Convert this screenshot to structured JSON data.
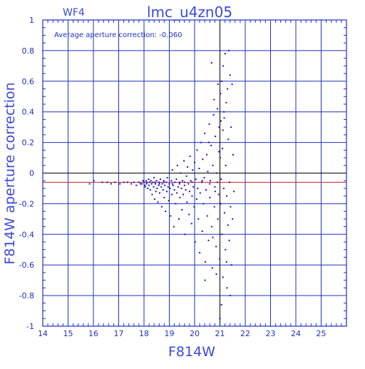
{
  "header": {
    "corner_label": "WF4",
    "title": "lmc_u4zn05"
  },
  "annotation": "Average aperture correction: -0.060",
  "chart_data": {
    "type": "scatter",
    "title": "lmc_u4zn05",
    "subtitle": "WF4",
    "xlabel": "F814W",
    "ylabel": "F814W aperture correction",
    "xlim": [
      14,
      26
    ],
    "ylim": [
      -1,
      1
    ],
    "xticks": [
      14,
      15,
      16,
      17,
      18,
      19,
      20,
      21,
      22,
      23,
      24,
      25
    ],
    "yticks": [
      -1,
      -0.8,
      -0.6,
      -0.4,
      -0.2,
      0,
      0.2,
      0.4,
      0.6,
      0.8,
      1
    ],
    "ytick_labels": [
      "-1",
      "-0.8",
      "-0.6",
      "-0.4",
      "-0.2",
      "0",
      "0.2",
      "0.4",
      "0.6",
      "0.8",
      "1"
    ],
    "grid": true,
    "reference_lines": {
      "horizontal_zero": 0,
      "average_correction": -0.06,
      "vertical_x": 21
    },
    "annotation": "Average aperture correction: -0.060",
    "colors": {
      "axes": "#1f2fbf",
      "grid": "#1f2fbf",
      "points": "#1414c8",
      "average_line": "#cc2020",
      "reference_line": "#000000",
      "text": "#3a4ad8"
    },
    "series": [
      {
        "points": [
          [
            15.85,
            -0.07
          ],
          [
            16.02,
            -0.05
          ],
          [
            16.35,
            -0.06
          ],
          [
            16.55,
            -0.06
          ],
          [
            16.7,
            -0.07
          ],
          [
            16.85,
            -0.06
          ],
          [
            17.05,
            -0.07
          ],
          [
            17.2,
            -0.06
          ],
          [
            17.35,
            -0.06
          ],
          [
            17.5,
            -0.07
          ],
          [
            17.6,
            -0.06
          ],
          [
            17.7,
            -0.08
          ],
          [
            17.8,
            -0.06
          ],
          [
            17.86,
            -0.07
          ],
          [
            17.92,
            -0.07
          ],
          [
            17.96,
            -0.05
          ],
          [
            18.0,
            -0.06
          ],
          [
            18.03,
            -0.08
          ],
          [
            18.05,
            -0.09
          ],
          [
            18.08,
            -0.05
          ],
          [
            18.1,
            -0.07
          ],
          [
            18.12,
            -0.06
          ],
          [
            18.15,
            -0.1
          ],
          [
            18.18,
            -0.04
          ],
          [
            18.2,
            -0.08
          ],
          [
            18.22,
            -0.06
          ],
          [
            18.25,
            -0.11
          ],
          [
            18.27,
            -0.05
          ],
          [
            18.3,
            -0.07
          ],
          [
            18.32,
            -0.14
          ],
          [
            18.35,
            -0.06
          ],
          [
            18.38,
            -0.09
          ],
          [
            18.4,
            -0.03
          ],
          [
            18.42,
            -0.17
          ],
          [
            18.45,
            -0.07
          ],
          [
            18.47,
            -0.12
          ],
          [
            18.5,
            -0.05
          ],
          [
            18.52,
            -0.1
          ],
          [
            18.55,
            -0.19
          ],
          [
            18.58,
            -0.08
          ],
          [
            18.6,
            -0.06
          ],
          [
            18.62,
            -0.13
          ],
          [
            18.65,
            -0.04
          ],
          [
            18.68,
            -0.09
          ],
          [
            18.7,
            -0.22
          ],
          [
            18.72,
            -0.07
          ],
          [
            18.75,
            -0.11
          ],
          [
            18.78,
            -0.05
          ],
          [
            18.8,
            -0.16
          ],
          [
            18.82,
            -0.08
          ],
          [
            18.85,
            -0.25
          ],
          [
            18.88,
            -0.06
          ],
          [
            18.9,
            -0.12
          ],
          [
            18.92,
            -0.03
          ],
          [
            18.95,
            -0.09
          ],
          [
            18.98,
            -0.18
          ],
          [
            19.0,
            -0.07
          ],
          [
            19.03,
            -0.1
          ],
          [
            19.05,
            -0.28
          ],
          [
            19.08,
            -0.05
          ],
          [
            19.1,
            -0.14
          ],
          [
            19.12,
            0.02
          ],
          [
            19.15,
            -0.08
          ],
          [
            19.18,
            -0.35
          ],
          [
            19.2,
            -0.11
          ],
          [
            19.22,
            -0.06
          ],
          [
            19.25,
            -0.2
          ],
          [
            19.28,
            -0.04
          ],
          [
            19.3,
            -0.13
          ],
          [
            19.32,
            0.05
          ],
          [
            19.35,
            -0.09
          ],
          [
            19.38,
            -0.3
          ],
          [
            19.4,
            -0.07
          ],
          [
            19.42,
            -0.16
          ],
          [
            19.45,
            0.0
          ],
          [
            19.48,
            -0.1
          ],
          [
            19.5,
            -0.24
          ],
          [
            19.52,
            -0.05
          ],
          [
            19.55,
            -0.14
          ],
          [
            19.58,
            0.08
          ],
          [
            19.6,
            -0.08
          ],
          [
            19.62,
            -0.4
          ],
          [
            19.65,
            -0.11
          ],
          [
            19.68,
            -0.02
          ],
          [
            19.7,
            -0.19
          ],
          [
            19.72,
            0.04
          ],
          [
            19.75,
            -0.07
          ],
          [
            19.78,
            -0.27
          ],
          [
            19.8,
            -0.12
          ],
          [
            19.82,
            0.11
          ],
          [
            19.85,
            -0.05
          ],
          [
            19.88,
            -0.33
          ],
          [
            19.9,
            -0.15
          ],
          [
            19.92,
            0.02
          ],
          [
            19.95,
            -0.09
          ],
          [
            19.98,
            -0.22
          ],
          [
            20.0,
            0.07
          ],
          [
            20.02,
            -0.45
          ],
          [
            20.05,
            -0.04
          ],
          [
            20.08,
            -0.17
          ],
          [
            20.1,
            0.15
          ],
          [
            20.12,
            -0.1
          ],
          [
            20.15,
            -0.3
          ],
          [
            20.18,
            0.03
          ],
          [
            20.2,
            -0.52
          ],
          [
            20.22,
            -0.13
          ],
          [
            20.25,
            0.2
          ],
          [
            20.28,
            -0.06
          ],
          [
            20.3,
            -0.38
          ],
          [
            20.32,
            0.09
          ],
          [
            20.35,
            -0.2
          ],
          [
            20.38,
            -0.03
          ],
          [
            20.4,
            0.26
          ],
          [
            20.42,
            -0.58
          ],
          [
            20.45,
            -0.11
          ],
          [
            20.48,
            0.12
          ],
          [
            20.5,
            -0.28
          ],
          [
            20.52,
            0.01
          ],
          [
            20.55,
            -0.44
          ],
          [
            20.58,
            0.32
          ],
          [
            20.6,
            -0.16
          ],
          [
            20.62,
            -0.05
          ],
          [
            20.65,
            0.18
          ],
          [
            20.68,
            -0.35
          ],
          [
            20.7,
            -0.62
          ],
          [
            20.72,
            0.05
          ],
          [
            20.75,
            0.38
          ],
          [
            20.78,
            -0.22
          ],
          [
            20.8,
            -0.09
          ],
          [
            20.82,
            0.24
          ],
          [
            20.85,
            -0.48
          ],
          [
            20.87,
            0.0
          ],
          [
            20.9,
            0.42
          ],
          [
            20.92,
            -0.3
          ],
          [
            20.95,
            -0.14
          ],
          [
            20.97,
            0.3
          ],
          [
            20.99,
            -0.56
          ],
          [
            21.0,
            -0.95
          ],
          [
            21.01,
            0.1
          ],
          [
            21.02,
            0.52
          ],
          [
            21.03,
            -0.2
          ],
          [
            21.05,
            -0.04
          ],
          [
            21.07,
            0.6
          ],
          [
            21.08,
            -0.4
          ],
          [
            21.1,
            0.16
          ],
          [
            21.12,
            -0.68
          ],
          [
            21.13,
            0.7
          ],
          [
            21.15,
            -0.1
          ],
          [
            21.17,
            0.36
          ],
          [
            21.18,
            -0.26
          ],
          [
            21.2,
            0.78
          ],
          [
            21.22,
            -0.5
          ],
          [
            21.23,
            0.05
          ],
          [
            21.25,
            0.46
          ],
          [
            21.27,
            -0.15
          ],
          [
            21.28,
            -0.75
          ],
          [
            21.3,
            0.55
          ],
          [
            21.32,
            -0.34
          ],
          [
            21.33,
            0.22
          ],
          [
            21.35,
            0.8
          ],
          [
            21.37,
            -0.44
          ],
          [
            21.38,
            -0.06
          ],
          [
            21.4,
            0.64
          ],
          [
            21.42,
            -0.22
          ],
          [
            21.44,
            0.3
          ],
          [
            21.46,
            -0.6
          ],
          [
            21.48,
            0.58
          ],
          [
            21.5,
            -0.3
          ],
          [
            21.52,
            0.12
          ],
          [
            21.55,
            -0.12
          ],
          [
            20.67,
            0.72
          ],
          [
            20.72,
            -0.42
          ],
          [
            20.77,
            0.48
          ],
          [
            20.86,
            -0.66
          ],
          [
            20.92,
            0.58
          ],
          [
            21.06,
            -0.86
          ],
          [
            21.16,
            0.4
          ],
          [
            21.26,
            -0.58
          ],
          [
            21.41,
            -0.8
          ],
          [
            21.12,
            0.28
          ],
          [
            20.41,
            -0.7
          ],
          [
            20.56,
            0.2
          ],
          [
            20.81,
            -0.12
          ],
          [
            20.96,
            0.14
          ],
          [
            21.04,
            0.34
          ],
          [
            19.9,
            -0.06
          ],
          [
            19.6,
            -0.06
          ],
          [
            20.3,
            -0.05
          ],
          [
            20.6,
            -0.07
          ],
          [
            20.9,
            -0.06
          ],
          [
            18.43,
            -0.06
          ],
          [
            18.61,
            -0.07
          ],
          [
            18.79,
            -0.06
          ],
          [
            19.12,
            -0.07
          ],
          [
            19.41,
            -0.06
          ]
        ]
      }
    ]
  }
}
